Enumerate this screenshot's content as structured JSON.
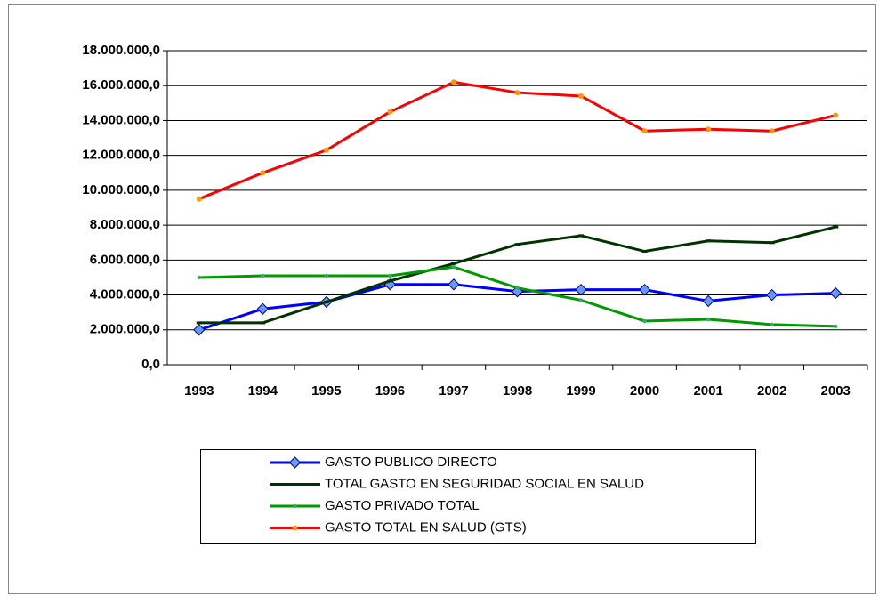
{
  "chart_data": {
    "type": "line",
    "categories": [
      "1993",
      "1994",
      "1995",
      "1996",
      "1997",
      "1998",
      "1999",
      "2000",
      "2001",
      "2002",
      "2003"
    ],
    "series": [
      {
        "name": "GASTO PUBLICO DIRECTO",
        "color": "#0000ff",
        "marker": "diamond",
        "values": [
          2000000,
          3200000,
          3600000,
          4600000,
          4600000,
          4200000,
          4300000,
          4300000,
          3650000,
          4000000,
          4100000
        ]
      },
      {
        "name": "TOTAL GASTO EN SEGURIDAD SOCIAL EN SALUD",
        "color": "#003300",
        "marker": "dash",
        "values": [
          2400000,
          2400000,
          3600000,
          4800000,
          5800000,
          6900000,
          7400000,
          6500000,
          7100000,
          7000000,
          7900000
        ]
      },
      {
        "name": "GASTO PRIVADO TOTAL",
        "color": "#009900",
        "marker": "dot",
        "values": [
          5000000,
          5100000,
          5100000,
          5100000,
          5600000,
          4400000,
          3700000,
          2500000,
          2600000,
          2300000,
          2200000
        ]
      },
      {
        "name": "GASTO TOTAL EN SALUD (GTS)",
        "color": "#ff0000",
        "marker_color": "#ff9900",
        "marker": "circle",
        "values": [
          9500000,
          11000000,
          12300000,
          14500000,
          16200000,
          15600000,
          15400000,
          13400000,
          13500000,
          13400000,
          14300000
        ]
      }
    ],
    "ylim": [
      0,
      18000000
    ],
    "yticks": [
      {
        "value": 0,
        "label": "0,0"
      },
      {
        "value": 2000000,
        "label": "2.000.000,0"
      },
      {
        "value": 4000000,
        "label": "4.000.000,0"
      },
      {
        "value": 6000000,
        "label": "6.000.000,0"
      },
      {
        "value": 8000000,
        "label": "8.000.000,0"
      },
      {
        "value": 10000000,
        "label": "10.000.000,0"
      },
      {
        "value": 12000000,
        "label": "12.000.000,0"
      },
      {
        "value": 14000000,
        "label": "14.000.000,0"
      },
      {
        "value": 16000000,
        "label": "16.000.000,0"
      },
      {
        "value": 18000000,
        "label": "18.000.000,0"
      }
    ],
    "grid": true
  }
}
